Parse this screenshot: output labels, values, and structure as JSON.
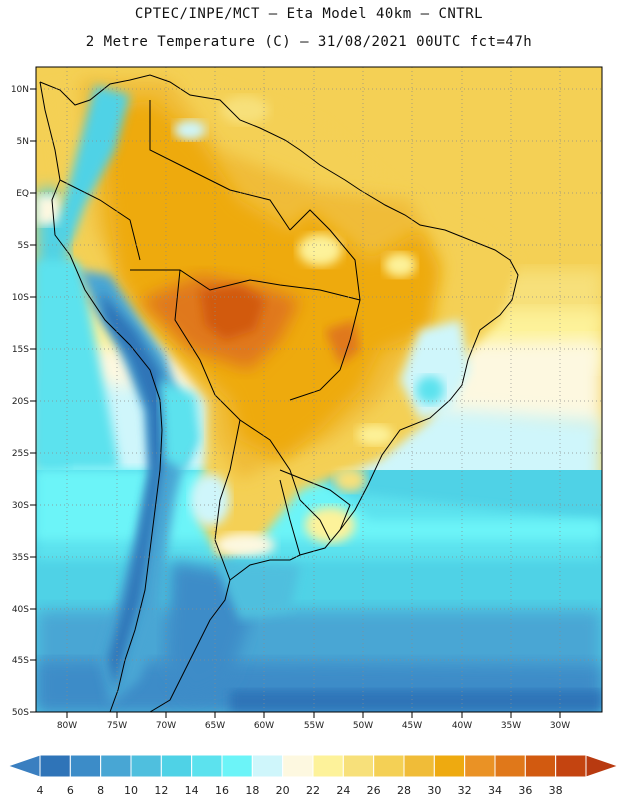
{
  "header": {
    "line1": "CPTEC/INPE/MCT –  Eta Model 40km – CNTRL",
    "line2": "2 Metre Temperature (C) – 31/08/2021 00UTC fct=47h"
  },
  "map": {
    "lon_range": [
      -85,
      -27
    ],
    "lat_range": [
      -50,
      12
    ],
    "lat_ticks": [
      {
        "value": 10,
        "label": "10N"
      },
      {
        "value": 5,
        "label": "5N"
      },
      {
        "value": 0,
        "label": "EQ"
      },
      {
        "value": -5,
        "label": "5S"
      },
      {
        "value": -10,
        "label": "10S"
      },
      {
        "value": -15,
        "label": "15S"
      },
      {
        "value": -20,
        "label": "20S"
      },
      {
        "value": -25,
        "label": "25S"
      },
      {
        "value": -30,
        "label": "30S"
      },
      {
        "value": -35,
        "label": "35S"
      },
      {
        "value": -40,
        "label": "40S"
      },
      {
        "value": -45,
        "label": "45S"
      },
      {
        "value": -50,
        "label": "50S"
      }
    ],
    "lon_ticks": [
      {
        "value": -80,
        "label": "80W"
      },
      {
        "value": -75,
        "label": "75W"
      },
      {
        "value": -70,
        "label": "70W"
      },
      {
        "value": -65,
        "label": "65W"
      },
      {
        "value": -60,
        "label": "60W"
      },
      {
        "value": -55,
        "label": "55W"
      },
      {
        "value": -50,
        "label": "50W"
      },
      {
        "value": -45,
        "label": "45W"
      },
      {
        "value": -40,
        "label": "40W"
      },
      {
        "value": -35,
        "label": "35W"
      },
      {
        "value": -30,
        "label": "30W"
      }
    ]
  },
  "colorbar": {
    "labels": [
      "4",
      "6",
      "8",
      "10",
      "12",
      "14",
      "16",
      "18",
      "20",
      "22",
      "24",
      "26",
      "28",
      "30",
      "32",
      "34",
      "36",
      "38"
    ],
    "colors": [
      "#3a7fc0",
      "#2f74b8",
      "#3c8cc8",
      "#48a6d4",
      "#4fbfde",
      "#4fd2e6",
      "#5ce2ee",
      "#6cf4f8",
      "#cff6fb",
      "#fdf8e0",
      "#fdf29a",
      "#f7e07a",
      "#f4d055",
      "#f0bc38",
      "#eeaa10",
      "#ea9225",
      "#e0781a",
      "#d25a10",
      "#c44410",
      "#b83a10"
    ]
  }
}
